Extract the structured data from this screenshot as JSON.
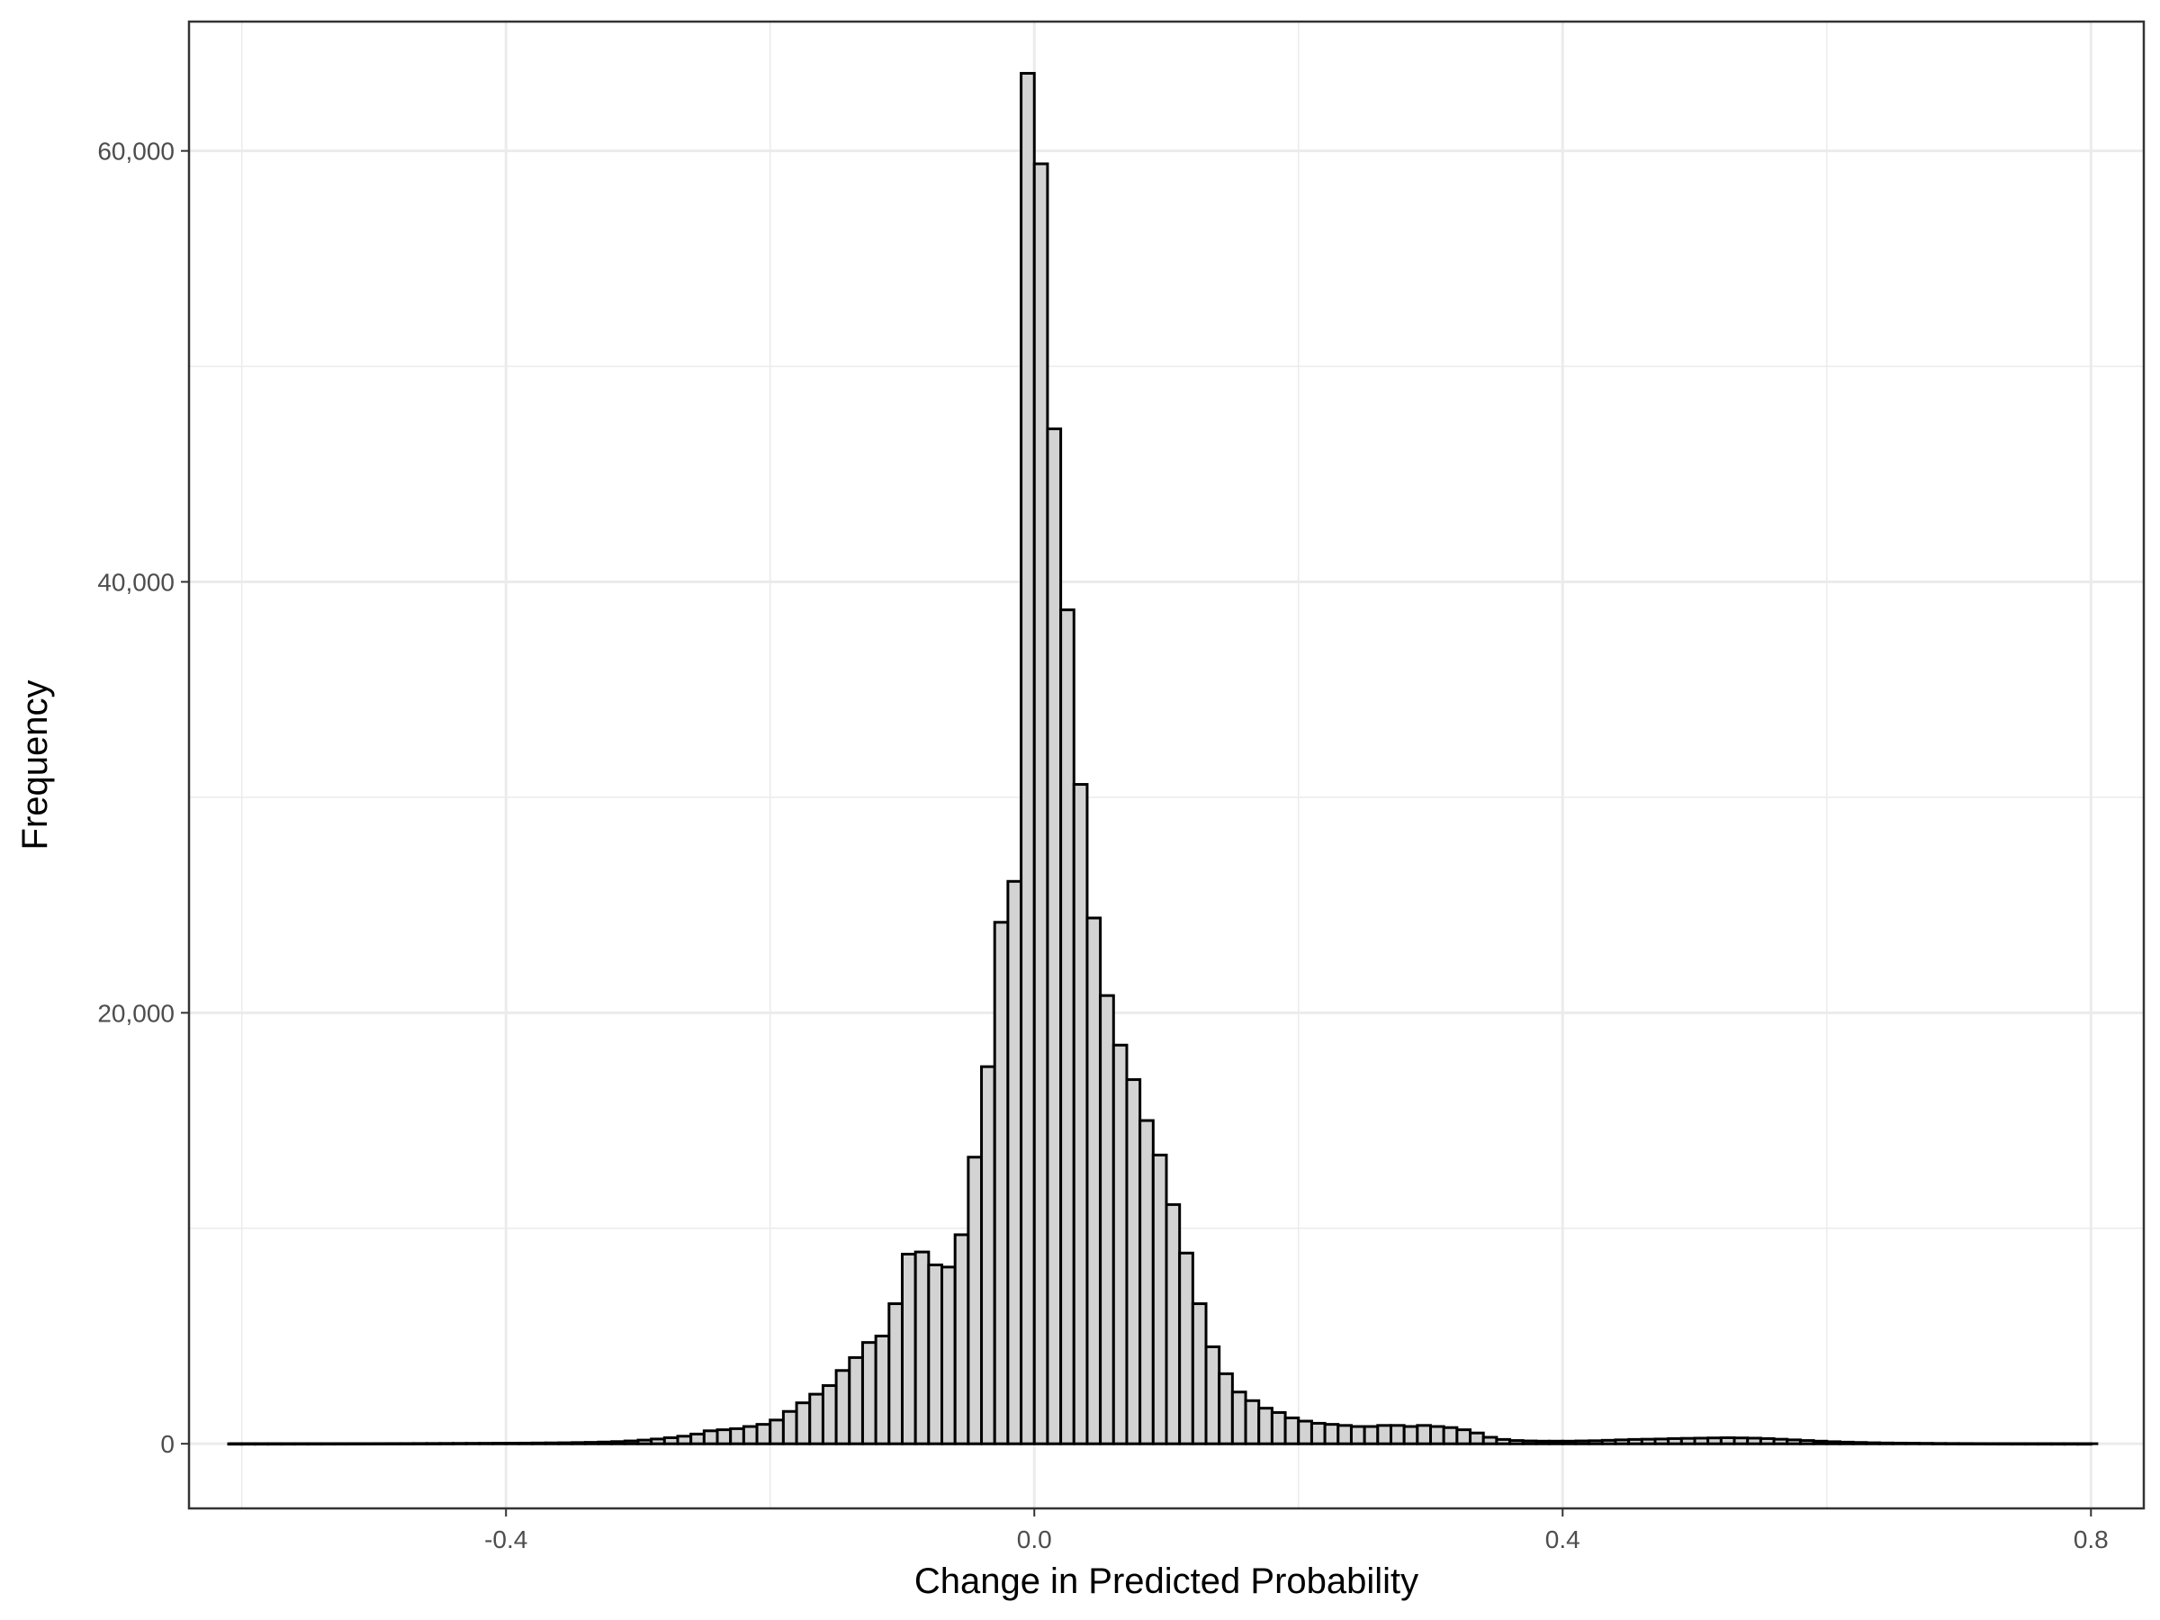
{
  "chart_data": {
    "type": "bar",
    "title": "",
    "xlabel": "Change in Predicted Probability",
    "ylabel": "Frequency",
    "xlim": [
      -0.64,
      0.84
    ],
    "ylim": [
      -3000,
      66000
    ],
    "x_ticks": [
      -0.4,
      0.0,
      0.4,
      0.8
    ],
    "x_tick_labels": [
      "-0.4",
      "0.0",
      "0.4",
      "0.8"
    ],
    "y_ticks": [
      0,
      20000,
      40000,
      60000
    ],
    "y_tick_labels": [
      "0",
      "20,000",
      "40,000",
      "60,000"
    ],
    "bin_width": 0.01,
    "x_start": -0.6095,
    "x_end": 0.8055,
    "grid": true,
    "colors": {
      "bar_fill": "#d3d3d3",
      "bar_stroke": "#000000",
      "panel_border": "#333333",
      "grid": "#ebebeb"
    },
    "bins": [
      {
        "x": -0.005,
        "y": 63600
      },
      {
        "x": 0.005,
        "y": 59400
      },
      {
        "x": 0.015,
        "y": 47100
      },
      {
        "x": 0.025,
        "y": 38700
      },
      {
        "x": 0.035,
        "y": 30600
      },
      {
        "x": 0.045,
        "y": 24400
      },
      {
        "x": 0.055,
        "y": 20800
      },
      {
        "x": 0.065,
        "y": 18500
      },
      {
        "x": 0.075,
        "y": 16900
      },
      {
        "x": 0.085,
        "y": 15000
      },
      {
        "x": 0.095,
        "y": 13400
      },
      {
        "x": 0.105,
        "y": 11100
      },
      {
        "x": 0.115,
        "y": 8850
      },
      {
        "x": 0.125,
        "y": 6500
      },
      {
        "x": 0.135,
        "y": 4500
      },
      {
        "x": 0.145,
        "y": 3250
      },
      {
        "x": 0.155,
        "y": 2400
      },
      {
        "x": 0.165,
        "y": 2000
      },
      {
        "x": 0.175,
        "y": 1650
      },
      {
        "x": 0.185,
        "y": 1450
      },
      {
        "x": 0.195,
        "y": 1200
      },
      {
        "x": 0.205,
        "y": 1050
      },
      {
        "x": 0.215,
        "y": 950
      },
      {
        "x": 0.225,
        "y": 900
      },
      {
        "x": 0.235,
        "y": 850
      },
      {
        "x": 0.245,
        "y": 800
      },
      {
        "x": 0.255,
        "y": 800
      },
      {
        "x": 0.265,
        "y": 850
      },
      {
        "x": 0.275,
        "y": 850
      },
      {
        "x": 0.285,
        "y": 800
      },
      {
        "x": 0.295,
        "y": 850
      },
      {
        "x": 0.305,
        "y": 800
      },
      {
        "x": 0.315,
        "y": 750
      },
      {
        "x": 0.325,
        "y": 650
      },
      {
        "x": 0.335,
        "y": 500
      },
      {
        "x": 0.345,
        "y": 300
      },
      {
        "x": 0.355,
        "y": 200
      },
      {
        "x": 0.365,
        "y": 150
      },
      {
        "x": 0.375,
        "y": 130
      },
      {
        "x": 0.385,
        "y": 120
      },
      {
        "x": 0.395,
        "y": 120
      },
      {
        "x": 0.405,
        "y": 120
      },
      {
        "x": 0.415,
        "y": 130
      },
      {
        "x": 0.425,
        "y": 140
      },
      {
        "x": 0.435,
        "y": 160
      },
      {
        "x": 0.445,
        "y": 180
      },
      {
        "x": 0.455,
        "y": 200
      },
      {
        "x": 0.465,
        "y": 210
      },
      {
        "x": 0.475,
        "y": 220
      },
      {
        "x": 0.485,
        "y": 240
      },
      {
        "x": 0.495,
        "y": 250
      },
      {
        "x": 0.505,
        "y": 260
      },
      {
        "x": 0.515,
        "y": 270
      },
      {
        "x": 0.525,
        "y": 280
      },
      {
        "x": 0.535,
        "y": 270
      },
      {
        "x": 0.545,
        "y": 260
      },
      {
        "x": 0.555,
        "y": 240
      },
      {
        "x": 0.565,
        "y": 210
      },
      {
        "x": 0.575,
        "y": 180
      },
      {
        "x": 0.585,
        "y": 150
      },
      {
        "x": 0.595,
        "y": 120
      },
      {
        "x": 0.605,
        "y": 95
      },
      {
        "x": 0.615,
        "y": 75
      },
      {
        "x": 0.625,
        "y": 60
      },
      {
        "x": 0.635,
        "y": 45
      },
      {
        "x": 0.645,
        "y": 35
      },
      {
        "x": 0.655,
        "y": 30
      },
      {
        "x": 0.665,
        "y": 25
      },
      {
        "x": 0.675,
        "y": 20
      },
      {
        "x": 0.685,
        "y": 15
      },
      {
        "x": 0.695,
        "y": 12
      },
      {
        "x": 0.705,
        "y": 10
      },
      {
        "x": 0.715,
        "y": 8
      },
      {
        "x": 0.725,
        "y": 6
      },
      {
        "x": 0.735,
        "y": 5
      },
      {
        "x": 0.745,
        "y": 4
      },
      {
        "x": 0.755,
        "y": 3
      },
      {
        "x": 0.765,
        "y": 3
      },
      {
        "x": 0.775,
        "y": 2
      },
      {
        "x": 0.785,
        "y": 2
      },
      {
        "x": 0.795,
        "y": 1
      },
      {
        "x": -0.015,
        "y": 26100
      },
      {
        "x": -0.025,
        "y": 24200
      },
      {
        "x": -0.035,
        "y": 17500
      },
      {
        "x": -0.045,
        "y": 13300
      },
      {
        "x": -0.055,
        "y": 9700
      },
      {
        "x": -0.065,
        "y": 8200
      },
      {
        "x": -0.075,
        "y": 8300
      },
      {
        "x": -0.085,
        "y": 8900
      },
      {
        "x": -0.095,
        "y": 8800
      },
      {
        "x": -0.105,
        "y": 6500
      },
      {
        "x": -0.115,
        "y": 5000
      },
      {
        "x": -0.125,
        "y": 4700
      },
      {
        "x": -0.135,
        "y": 4000
      },
      {
        "x": -0.145,
        "y": 3400
      },
      {
        "x": -0.155,
        "y": 2700
      },
      {
        "x": -0.165,
        "y": 2300
      },
      {
        "x": -0.175,
        "y": 1900
      },
      {
        "x": -0.185,
        "y": 1500
      },
      {
        "x": -0.195,
        "y": 1100
      },
      {
        "x": -0.205,
        "y": 900
      },
      {
        "x": -0.215,
        "y": 800
      },
      {
        "x": -0.225,
        "y": 700
      },
      {
        "x": -0.235,
        "y": 650
      },
      {
        "x": -0.245,
        "y": 600
      },
      {
        "x": -0.255,
        "y": 450
      },
      {
        "x": -0.265,
        "y": 350
      },
      {
        "x": -0.275,
        "y": 280
      },
      {
        "x": -0.285,
        "y": 220
      },
      {
        "x": -0.295,
        "y": 170
      },
      {
        "x": -0.305,
        "y": 130
      },
      {
        "x": -0.315,
        "y": 100
      },
      {
        "x": -0.325,
        "y": 80
      },
      {
        "x": -0.335,
        "y": 65
      },
      {
        "x": -0.345,
        "y": 55
      },
      {
        "x": -0.355,
        "y": 45
      },
      {
        "x": -0.365,
        "y": 40
      },
      {
        "x": -0.375,
        "y": 35
      },
      {
        "x": -0.385,
        "y": 30
      },
      {
        "x": -0.395,
        "y": 28
      },
      {
        "x": -0.405,
        "y": 25
      },
      {
        "x": -0.415,
        "y": 22
      },
      {
        "x": -0.425,
        "y": 20
      },
      {
        "x": -0.435,
        "y": 18
      },
      {
        "x": -0.445,
        "y": 16
      },
      {
        "x": -0.455,
        "y": 14
      },
      {
        "x": -0.465,
        "y": 12
      },
      {
        "x": -0.475,
        "y": 10
      },
      {
        "x": -0.485,
        "y": 9
      },
      {
        "x": -0.495,
        "y": 8
      },
      {
        "x": -0.505,
        "y": 7
      },
      {
        "x": -0.515,
        "y": 6
      },
      {
        "x": -0.525,
        "y": 5
      },
      {
        "x": -0.535,
        "y": 5
      },
      {
        "x": -0.545,
        "y": 4
      },
      {
        "x": -0.555,
        "y": 4
      },
      {
        "x": -0.565,
        "y": 3
      },
      {
        "x": -0.575,
        "y": 3
      },
      {
        "x": -0.585,
        "y": 2
      },
      {
        "x": -0.595,
        "y": 2
      },
      {
        "x": -0.605,
        "y": 1
      }
    ]
  }
}
